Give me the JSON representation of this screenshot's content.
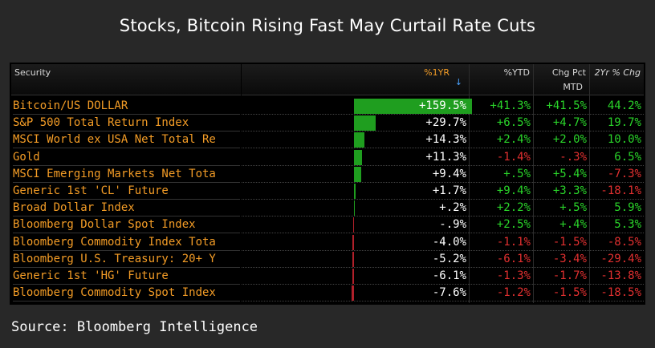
{
  "title": "Stocks, Bitcoin Rising Fast May Curtail Rate Cuts",
  "source": "Source: Bloomberg Intelligence",
  "header": {
    "security": "Security",
    "col_1yr": "%1YR",
    "sort_arrow": "↓",
    "col_ytd": "%YTD",
    "col_mtd_1": "Chg Pct",
    "col_mtd_2": "MTD",
    "col_2yr": "2Yr % Chg"
  },
  "colors": {
    "positive": "#2ad42a",
    "negative": "#e23030",
    "bar_positive": "#1f9e1f",
    "bar_negative": "#b0202a",
    "name": "#f39c26"
  },
  "chart_data": {
    "type": "table",
    "columns": [
      "Security",
      "%1YR",
      "%YTD",
      "Chg Pct MTD",
      "2Yr % Chg"
    ],
    "rows": [
      {
        "security": "Bitcoin/US DOLLAR",
        "one_yr": 159.5,
        "one_yr_text": "+159.5%",
        "ytd": "+41.3%",
        "mtd": "+41.5%",
        "two_yr": "44.2%"
      },
      {
        "security": "S&P 500 Total Return Index",
        "one_yr": 29.7,
        "one_yr_text": "+29.7%",
        "ytd": "+6.5%",
        "mtd": "+4.7%",
        "two_yr": "19.7%"
      },
      {
        "security": "MSCI World ex USA Net Total Re",
        "one_yr": 14.3,
        "one_yr_text": "+14.3%",
        "ytd": "+2.4%",
        "mtd": "+2.0%",
        "two_yr": "10.0%"
      },
      {
        "security": "Gold",
        "one_yr": 11.3,
        "one_yr_text": "+11.3%",
        "ytd": "-1.4%",
        "mtd": "-.3%",
        "two_yr": "6.5%"
      },
      {
        "security": "MSCI Emerging Markets Net Tota",
        "one_yr": 9.4,
        "one_yr_text": "+9.4%",
        "ytd": "+.5%",
        "mtd": "+5.4%",
        "two_yr": "-7.3%"
      },
      {
        "security": "Generic 1st 'CL' Future",
        "one_yr": 1.7,
        "one_yr_text": "+1.7%",
        "ytd": "+9.4%",
        "mtd": "+3.3%",
        "two_yr": "-18.1%"
      },
      {
        "security": "Broad Dollar Index",
        "one_yr": 0.2,
        "one_yr_text": "+.2%",
        "ytd": "+2.2%",
        "mtd": "+.5%",
        "two_yr": "5.9%"
      },
      {
        "security": "Bloomberg Dollar Spot Index",
        "one_yr": -0.9,
        "one_yr_text": "-.9%",
        "ytd": "+2.5%",
        "mtd": "+.4%",
        "two_yr": "5.3%"
      },
      {
        "security": "Bloomberg Commodity Index Tota",
        "one_yr": -4.0,
        "one_yr_text": "-4.0%",
        "ytd": "-1.1%",
        "mtd": "-1.5%",
        "two_yr": "-8.5%"
      },
      {
        "security": "Bloomberg U.S. Treasury: 20+ Y",
        "one_yr": -5.2,
        "one_yr_text": "-5.2%",
        "ytd": "-6.1%",
        "mtd": "-3.4%",
        "two_yr": "-29.4%"
      },
      {
        "security": "Generic 1st 'HG' Future",
        "one_yr": -6.1,
        "one_yr_text": "-6.1%",
        "ytd": "-1.3%",
        "mtd": "-1.7%",
        "two_yr": "-13.8%"
      },
      {
        "security": "Bloomberg Commodity Spot Index",
        "one_yr": -7.6,
        "one_yr_text": "-7.6%",
        "ytd": "-1.2%",
        "mtd": "-1.5%",
        "two_yr": "-18.5%"
      }
    ]
  }
}
